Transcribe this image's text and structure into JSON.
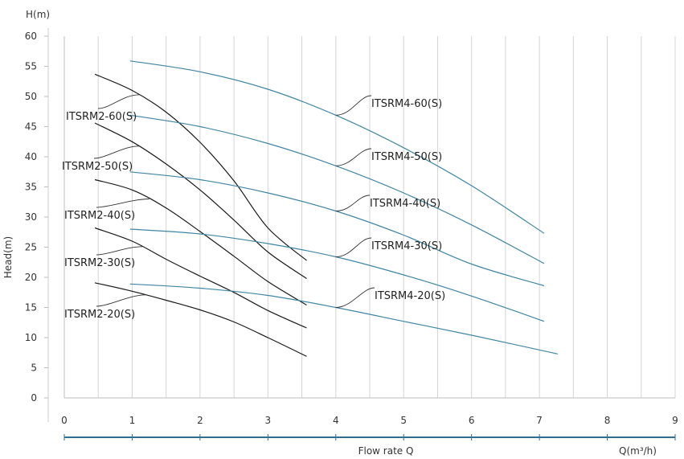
{
  "chart_data": {
    "type": "line",
    "y_unit_label": "H(m)",
    "ylabel": "Head(m)",
    "xlabel": "Flow rate Q",
    "x_unit_label": "Q(m³/h)",
    "xlim": [
      0,
      9
    ],
    "ylim": [
      0,
      60
    ],
    "x_ticks": [
      "0",
      "1",
      "2",
      "3",
      "4",
      "5",
      "6",
      "7",
      "8",
      "9"
    ],
    "y_ticks": [
      "0",
      "5",
      "10",
      "15",
      "20",
      "25",
      "30",
      "35",
      "40",
      "45",
      "50",
      "55",
      "60"
    ],
    "grid": "vertical",
    "series": [
      {
        "name": "ITSRM2-60(S)",
        "color": "#1a1a1a",
        "x": [
          0.45,
          1.0,
          1.5,
          2.0,
          2.5,
          3.0,
          3.57
        ],
        "y": [
          53.7,
          51.0,
          47.4,
          42.4,
          36.0,
          28.2,
          22.8
        ]
      },
      {
        "name": "ITSRM2-50(S)",
        "color": "#1a1a1a",
        "x": [
          0.45,
          1.0,
          1.5,
          2.0,
          2.5,
          3.0,
          3.57
        ],
        "y": [
          45.6,
          42.5,
          38.8,
          34.5,
          29.5,
          24.2,
          19.8
        ]
      },
      {
        "name": "ITSRM2-40(S)",
        "color": "#1a1a1a",
        "x": [
          0.45,
          1.0,
          1.5,
          2.0,
          2.5,
          3.0,
          3.57
        ],
        "y": [
          36.2,
          34.5,
          31.5,
          27.6,
          23.5,
          19.3,
          15.4
        ]
      },
      {
        "name": "ITSRM2-30(S)",
        "color": "#1a1a1a",
        "x": [
          0.45,
          1.0,
          1.5,
          2.0,
          2.5,
          3.0,
          3.57
        ],
        "y": [
          28.2,
          26.0,
          23.0,
          20.2,
          17.5,
          14.5,
          11.6
        ]
      },
      {
        "name": "ITSRM2-20(S)",
        "color": "#1a1a1a",
        "x": [
          0.45,
          1.0,
          1.5,
          2.0,
          2.5,
          3.0,
          3.57
        ],
        "y": [
          19.1,
          17.7,
          16.2,
          14.6,
          12.6,
          10.0,
          6.9
        ]
      },
      {
        "name": "ITSRM4-60(S)",
        "color": "#3f86a5",
        "x": [
          0.97,
          2.0,
          3.0,
          4.0,
          5.0,
          6.0,
          7.07
        ],
        "y": [
          55.9,
          54.1,
          51.2,
          46.9,
          41.5,
          35.2,
          27.3
        ]
      },
      {
        "name": "ITSRM4-50(S)",
        "color": "#3f86a5",
        "x": [
          0.97,
          2.0,
          3.0,
          4.0,
          5.0,
          6.0,
          7.07
        ],
        "y": [
          46.9,
          45.0,
          42.2,
          38.5,
          34.0,
          28.7,
          22.3
        ]
      },
      {
        "name": "ITSRM4-40(S)",
        "color": "#3f86a5",
        "x": [
          0.97,
          2.0,
          3.0,
          4.0,
          5.0,
          6.0,
          7.07
        ],
        "y": [
          37.5,
          36.2,
          34.0,
          31.0,
          27.0,
          22.2,
          18.6
        ]
      },
      {
        "name": "ITSRM4-30(S)",
        "color": "#3f86a5",
        "x": [
          0.97,
          2.0,
          3.0,
          4.0,
          5.0,
          6.0,
          7.07
        ],
        "y": [
          28.0,
          27.2,
          25.6,
          23.4,
          20.4,
          16.9,
          12.7
        ]
      },
      {
        "name": "ITSRM4-20(S)",
        "color": "#3f86a5",
        "x": [
          0.97,
          2.0,
          3.0,
          4.0,
          5.0,
          6.0,
          7.27
        ],
        "y": [
          18.9,
          18.2,
          17.0,
          15.0,
          12.7,
          10.4,
          7.3
        ]
      }
    ]
  }
}
